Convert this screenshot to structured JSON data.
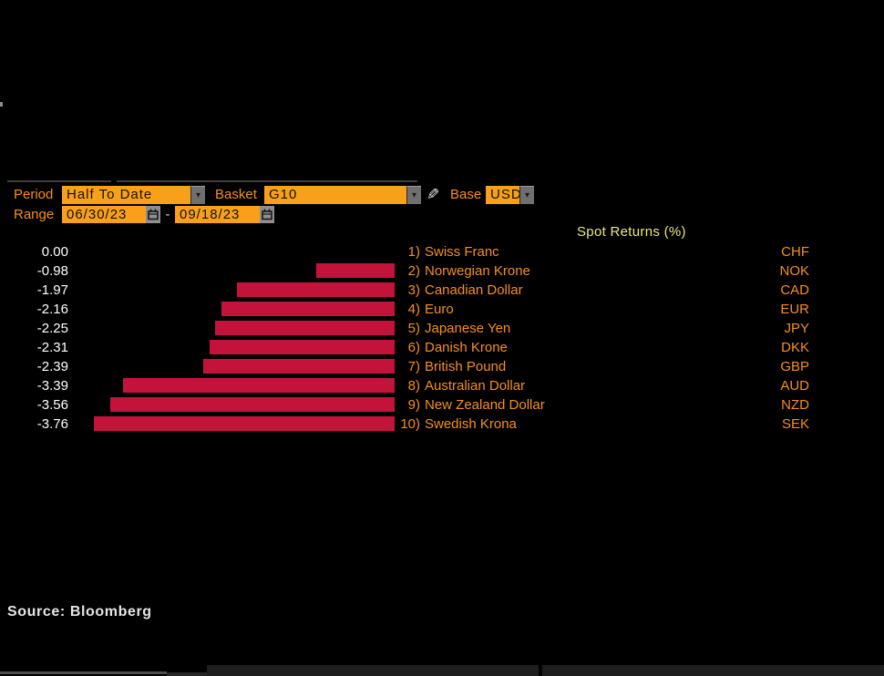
{
  "colors": {
    "background": "#000000",
    "label_orange": "#f68f1e",
    "field_orange": "#f9a01b",
    "field_text": "#111111",
    "title_yellow": "#eee87f",
    "bar_red": "#c4133b",
    "value_white": "#ffffff",
    "source_gray": "#e6e6e6"
  },
  "icons": {
    "dropdown_arrow": "▾",
    "edit_pencil": "✎"
  },
  "toolbar": {
    "period_label": "Period",
    "period_value": "Half To Date",
    "basket_label": "Basket",
    "basket_value": "G10",
    "base_label": "Base",
    "base_value": "USD",
    "range_label": "Range",
    "range_start": "06/30/23",
    "range_separator": "-",
    "range_end": "09/18/23"
  },
  "chart_data": {
    "type": "bar",
    "orientation": "horizontal",
    "title": "Spot Returns (%)",
    "base_currency": "USD",
    "basket": "G10",
    "period": "Half To Date",
    "range": [
      "06/30/23",
      "09/18/23"
    ],
    "value_axis": {
      "min": -3.76,
      "max": 0
    },
    "bar_color": "#c4133b",
    "rows": [
      {
        "rank": "1)",
        "name": "Swiss Franc",
        "code": "CHF",
        "value": 0.0,
        "value_label": "0.00"
      },
      {
        "rank": "2)",
        "name": "Norwegian Krone",
        "code": "NOK",
        "value": -0.98,
        "value_label": "-0.98"
      },
      {
        "rank": "3)",
        "name": "Canadian Dollar",
        "code": "CAD",
        "value": -1.97,
        "value_label": "-1.97"
      },
      {
        "rank": "4)",
        "name": "Euro",
        "code": "EUR",
        "value": -2.16,
        "value_label": "-2.16"
      },
      {
        "rank": "5)",
        "name": "Japanese Yen",
        "code": "JPY",
        "value": -2.25,
        "value_label": "-2.25"
      },
      {
        "rank": "6)",
        "name": "Danish Krone",
        "code": "DKK",
        "value": -2.31,
        "value_label": "-2.31"
      },
      {
        "rank": "7)",
        "name": "British Pound",
        "code": "GBP",
        "value": -2.39,
        "value_label": "-2.39"
      },
      {
        "rank": "8)",
        "name": "Australian Dollar",
        "code": "AUD",
        "value": -3.39,
        "value_label": "-3.39"
      },
      {
        "rank": "9)",
        "name": "New Zealand Dollar",
        "code": "NZD",
        "value": -3.56,
        "value_label": "-3.56"
      },
      {
        "rank": "10)",
        "name": "Swedish Krona",
        "code": "SEK",
        "value": -3.76,
        "value_label": "-3.76"
      }
    ]
  },
  "source": "Source: Bloomberg"
}
